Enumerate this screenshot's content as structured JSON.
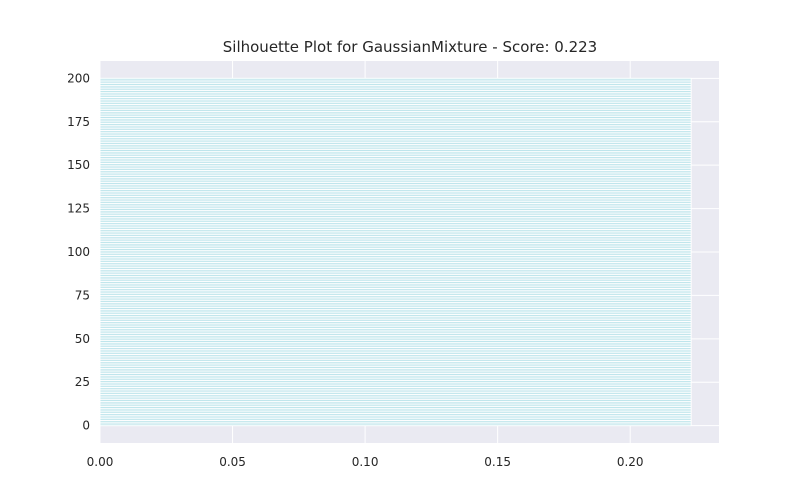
{
  "chart_data": {
    "type": "bar",
    "orientation": "horizontal",
    "title": "Silhouette Plot for GaussianMixture - Score: 0.223",
    "xlabel": "",
    "ylabel": "",
    "xlim": [
      0.0,
      0.2335
    ],
    "ylim": [
      -10,
      210
    ],
    "x_ticks": [
      0.0,
      0.05,
      0.1,
      0.15,
      0.2
    ],
    "x_tick_labels": [
      "0.00",
      "0.05",
      "0.10",
      "0.15",
      "0.20"
    ],
    "y_ticks": [
      0,
      25,
      50,
      75,
      100,
      125,
      150,
      175,
      200
    ],
    "y_tick_labels": [
      "0",
      "25",
      "50",
      "75",
      "100",
      "125",
      "150",
      "175",
      "200"
    ],
    "grid": true,
    "legend": "none",
    "score": 0.223,
    "series": [
      {
        "bar_start": 0.0,
        "bar_value": 0.223,
        "y_start": 0,
        "y_count": 200,
        "bar_color": "#b2e0e8",
        "edge_color": "#ffffff"
      }
    ],
    "colors": {
      "plot_background": "#eaeaf2",
      "grid": "#ffffff",
      "bar": "#b2e0e8"
    }
  }
}
